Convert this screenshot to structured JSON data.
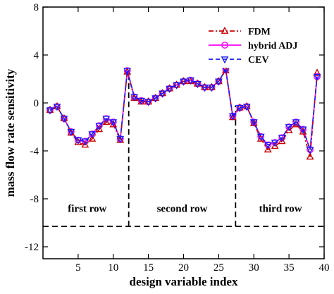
{
  "chart_data": {
    "type": "line",
    "xlabel": "design variable index",
    "ylabel": "mass flow rate sensitivity",
    "xlim": [
      0,
      40
    ],
    "ylim": [
      -13,
      8
    ],
    "x_ticks": [
      5,
      10,
      15,
      20,
      25,
      30,
      35,
      40
    ],
    "y_ticks": [
      8,
      4,
      0,
      -4,
      -8,
      -12
    ],
    "legend_position": "top-right",
    "groups": [
      {
        "start": 1,
        "end": 11
      },
      {
        "start": 13,
        "end": 26
      },
      {
        "start": 28,
        "end": 38
      }
    ],
    "series": [
      {
        "name": "FDM",
        "color": "#cc0000",
        "marker": "triangle-up",
        "line_style": "dash-dot",
        "x": [
          1,
          2,
          3,
          4,
          5,
          6,
          7,
          8,
          9,
          10,
          11,
          12,
          13,
          14,
          15,
          16,
          17,
          18,
          19,
          20,
          21,
          22,
          23,
          24,
          25,
          26,
          27,
          28,
          29,
          30,
          31,
          32,
          33,
          34,
          35,
          36,
          37,
          38,
          39
        ],
        "y": [
          -0.6,
          -0.3,
          -1.3,
          -2.5,
          -3.3,
          -3.5,
          -3.0,
          -2.2,
          -1.6,
          -1.8,
          -3.1,
          2.6,
          0.4,
          0.1,
          0.1,
          0.4,
          0.8,
          1.2,
          1.5,
          1.8,
          1.8,
          1.6,
          1.3,
          1.3,
          1.8,
          2.7,
          -1.2,
          -0.4,
          -0.3,
          -1.7,
          -3.0,
          -3.9,
          -3.6,
          -3.2,
          -2.3,
          -1.8,
          -2.4,
          -4.5,
          2.5
        ]
      },
      {
        "name": "hybrid ADJ",
        "color": "#ff00ff",
        "marker": "circle",
        "line_style": "solid",
        "x": [
          1,
          2,
          3,
          4,
          5,
          6,
          7,
          8,
          9,
          10,
          11,
          12,
          13,
          14,
          15,
          16,
          17,
          18,
          19,
          20,
          21,
          22,
          23,
          24,
          25,
          26,
          27,
          28,
          29,
          30,
          31,
          32,
          33,
          34,
          35,
          36,
          37,
          38,
          39
        ],
        "y": [
          -0.6,
          -0.3,
          -1.3,
          -2.4,
          -3.1,
          -3.2,
          -2.6,
          -1.9,
          -1.3,
          -1.6,
          -3.0,
          2.7,
          0.5,
          0.2,
          0.1,
          0.4,
          0.8,
          1.2,
          1.5,
          1.8,
          1.9,
          1.6,
          1.3,
          1.3,
          1.8,
          2.8,
          -1.1,
          -0.4,
          -0.3,
          -1.6,
          -2.8,
          -3.5,
          -3.3,
          -2.9,
          -2.0,
          -1.6,
          -2.2,
          -3.9,
          2.2
        ]
      },
      {
        "name": "CEV",
        "color": "#1a1aff",
        "marker": "triangle-down",
        "line_style": "dash",
        "x": [
          1,
          2,
          3,
          4,
          5,
          6,
          7,
          8,
          9,
          10,
          11,
          12,
          13,
          14,
          15,
          16,
          17,
          18,
          19,
          20,
          21,
          22,
          23,
          24,
          25,
          26,
          27,
          28,
          29,
          30,
          31,
          32,
          33,
          34,
          35,
          36,
          37,
          38,
          39
        ],
        "y": [
          -0.6,
          -0.3,
          -1.3,
          -2.4,
          -3.1,
          -3.2,
          -2.6,
          -1.9,
          -1.3,
          -1.6,
          -3.0,
          2.7,
          0.5,
          0.2,
          0.1,
          0.4,
          0.8,
          1.2,
          1.5,
          1.8,
          1.9,
          1.6,
          1.3,
          1.3,
          1.8,
          2.8,
          -1.1,
          -0.4,
          -0.3,
          -1.6,
          -2.8,
          -3.5,
          -3.3,
          -2.9,
          -2.0,
          -1.6,
          -2.2,
          -3.9,
          2.2
        ]
      }
    ],
    "row_divider": {
      "baseline_y": -10.3,
      "divider_x": [
        12.2,
        27.4
      ],
      "labels": [
        "first row",
        "second row",
        "third row"
      ],
      "label_y": -8.8,
      "label_x": [
        6.3,
        19.8,
        33.8
      ]
    }
  }
}
